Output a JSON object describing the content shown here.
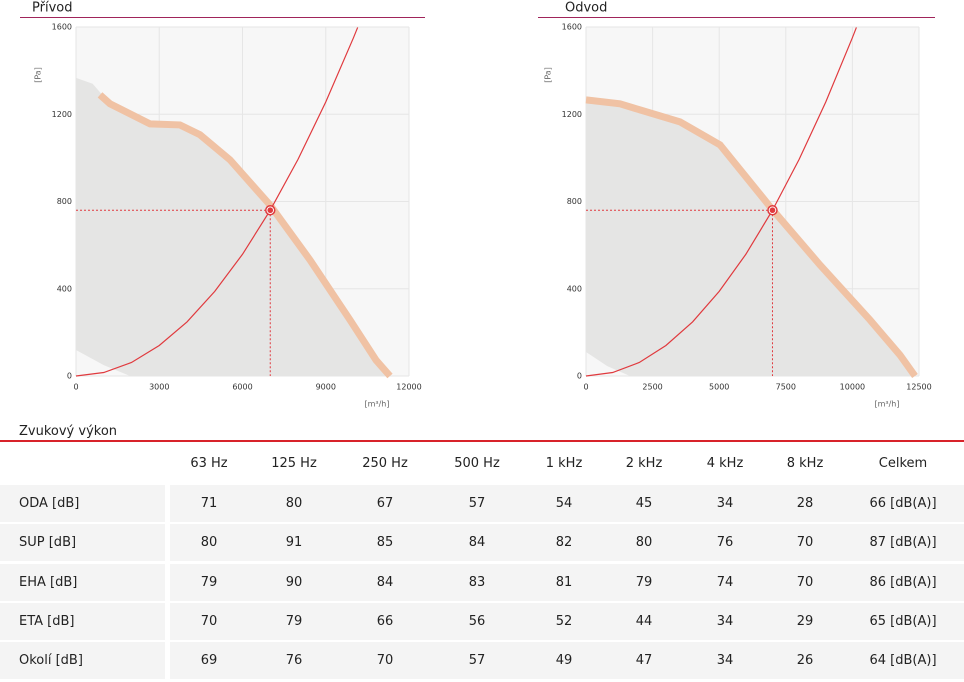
{
  "chart_data": [
    {
      "type": "line",
      "title": "Přívod",
      "ylabel": "[Pa]",
      "xlabel": "[m³/h]",
      "xlim": [
        0,
        12000
      ],
      "ylim": [
        0,
        1600
      ],
      "xticks": [
        0,
        3000,
        6000,
        9000,
        12000
      ],
      "yticks": [
        0,
        400,
        800,
        1200,
        1600
      ],
      "grid": true,
      "series": [
        {
          "kind": "area",
          "color": "#e5e5e4",
          "x": [
            0,
            600,
            1225,
            2667,
            3748,
            4468,
            5550,
            6991,
            8432,
            9874,
            10811,
            11315,
            1946,
            1000,
            0
          ],
          "values": [
            1367,
            1340,
            1248,
            1156,
            1151,
            1106,
            991,
            784,
            532,
            257,
            73,
            0,
            0,
            50,
            119
          ]
        },
        {
          "kind": "band",
          "color": "#f0c2a4",
          "x": [
            865,
            1225,
            2667,
            3748,
            4468,
            5550,
            6991,
            8432,
            9874,
            10811,
            11315
          ],
          "values": [
            1289,
            1248,
            1156,
            1151,
            1106,
            991,
            784,
            532,
            257,
            73,
            0
          ]
        },
        {
          "kind": "line",
          "color": "#e03a3e",
          "x": [
            0,
            1000,
            2000,
            3000,
            4000,
            5000,
            6000,
            7000,
            8000,
            9000,
            10000,
            10150
          ],
          "values": [
            0,
            16,
            62,
            140,
            248,
            388,
            558,
            760,
            993,
            1256,
            1551,
            1598
          ]
        }
      ],
      "point": {
        "x": 7000,
        "y": 760,
        "color": "#e03a3e"
      }
    },
    {
      "type": "line",
      "title": "Odvod",
      "ylabel": "[Pa]",
      "xlabel": "[m³/h]",
      "xlim": [
        0,
        12500
      ],
      "ylim": [
        0,
        1600
      ],
      "xticks": [
        0,
        2500,
        5000,
        7500,
        10000,
        12500
      ],
      "yticks": [
        0,
        400,
        800,
        1200,
        1600
      ],
      "grid": true,
      "series": [
        {
          "kind": "area",
          "color": "#e5e5e4",
          "x": [
            0,
            2027,
            3529,
            5030,
            6944,
            8784,
            10661,
            11787,
            12350,
            1650,
            800,
            0
          ],
          "values": [
            1266,
            1220,
            1165,
            1060,
            771,
            509,
            257,
            96,
            0,
            0,
            45,
            110
          ]
        },
        {
          "kind": "band",
          "color": "#f0c2a4",
          "x": [
            0,
            1276,
            2027,
            3529,
            5030,
            6944,
            8784,
            10661,
            11787,
            12350
          ],
          "values": [
            1266,
            1248,
            1220,
            1165,
            1060,
            771,
            509,
            257,
            96,
            0
          ]
        },
        {
          "kind": "line",
          "color": "#e03a3e",
          "x": [
            0,
            1000,
            2000,
            3000,
            4000,
            5000,
            6000,
            7000,
            8000,
            9000,
            10000,
            10150
          ],
          "values": [
            0,
            16,
            62,
            140,
            248,
            388,
            558,
            760,
            993,
            1256,
            1551,
            1598
          ]
        }
      ],
      "point": {
        "x": 7000,
        "y": 760,
        "color": "#e03a3e"
      }
    }
  ],
  "table": {
    "title": "Zvukový výkon",
    "columns": [
      "63 Hz",
      "125 Hz",
      "250 Hz",
      "500 Hz",
      "1 kHz",
      "2 kHz",
      "4 kHz",
      "8 kHz",
      "Celkem"
    ],
    "rows": [
      [
        "ODA [dB]",
        "71",
        "80",
        "67",
        "57",
        "54",
        "45",
        "34",
        "28",
        "66 [dB(A)]"
      ],
      [
        "SUP [dB]",
        "80",
        "91",
        "85",
        "84",
        "82",
        "80",
        "76",
        "70",
        "87 [dB(A)]"
      ],
      [
        "EHA [dB]",
        "79",
        "90",
        "84",
        "83",
        "81",
        "79",
        "74",
        "70",
        "86 [dB(A)]"
      ],
      [
        "ETA [dB]",
        "70",
        "79",
        "66",
        "56",
        "52",
        "44",
        "34",
        "29",
        "65 [dB(A)]"
      ],
      [
        "Okolí [dB]",
        "69",
        "76",
        "70",
        "57",
        "49",
        "47",
        "34",
        "26",
        "64 [dB(A)]"
      ]
    ]
  }
}
